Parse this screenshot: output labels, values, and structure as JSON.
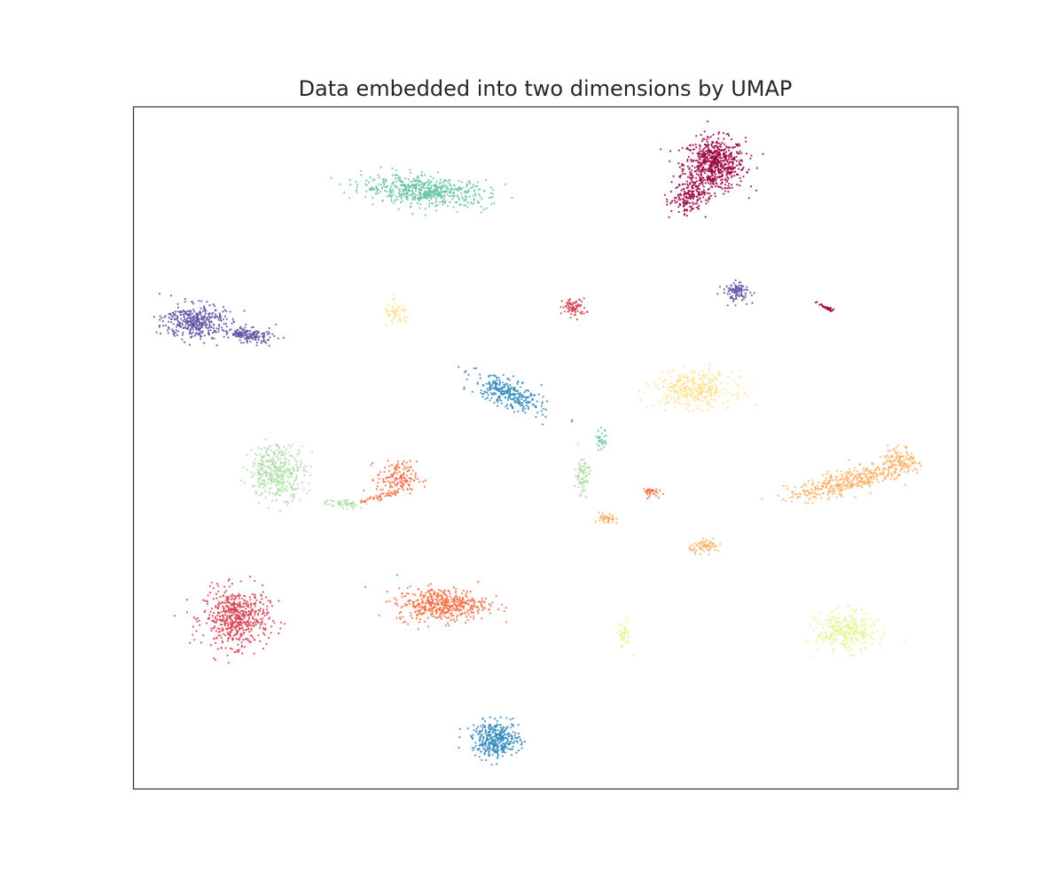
{
  "chart_data": {
    "type": "scatter",
    "title": "Data embedded into two dimensions by UMAP",
    "xlabel": "",
    "ylabel": "",
    "xlim": [
      0,
      100
    ],
    "ylim": [
      0,
      100
    ],
    "grid": false,
    "ticks": false,
    "legend": "none",
    "palette": "Spectral",
    "series": [
      {
        "label": 0,
        "color": "#9e0142",
        "clusters": [
          {
            "x": 70.5,
            "y": 91.5,
            "sx": 3.4,
            "sy": 3.5,
            "n": 650
          },
          {
            "x": 67.5,
            "y": 87.0,
            "sx": 1.8,
            "sy": 2.6,
            "n": 180,
            "rot": -35
          },
          {
            "x": 84.0,
            "y": 70.5,
            "sx": 1.2,
            "sy": 0.25,
            "n": 30,
            "rot": -30
          }
        ]
      },
      {
        "label": 1,
        "color": "#d53e4f",
        "clusters": [
          {
            "x": 53.5,
            "y": 70.5,
            "sx": 1.3,
            "sy": 1.2,
            "n": 80
          },
          {
            "x": 12.5,
            "y": 25.0,
            "sx": 3.6,
            "sy": 3.8,
            "n": 560
          }
        ]
      },
      {
        "label": 2,
        "color": "#f46d43",
        "clusters": [
          {
            "x": 32.0,
            "y": 45.5,
            "sx": 2.2,
            "sy": 2.2,
            "n": 150
          },
          {
            "x": 30.5,
            "y": 43.0,
            "sx": 3.0,
            "sy": 0.4,
            "n": 50,
            "rot": 18
          },
          {
            "x": 37.5,
            "y": 27.0,
            "sx": 5.0,
            "sy": 2.2,
            "n": 480
          },
          {
            "x": 62.5,
            "y": 43.5,
            "sx": 1.0,
            "sy": 0.6,
            "n": 35
          }
        ]
      },
      {
        "label": 3,
        "color": "#fdae61",
        "clusters": [
          {
            "x": 86.5,
            "y": 45.0,
            "sx": 6.5,
            "sy": 1.5,
            "n": 380,
            "rot": 18
          },
          {
            "x": 93.0,
            "y": 48.0,
            "sx": 1.8,
            "sy": 2.0,
            "n": 120
          },
          {
            "x": 57.5,
            "y": 39.5,
            "sx": 0.9,
            "sy": 0.8,
            "n": 45
          },
          {
            "x": 69.5,
            "y": 35.5,
            "sx": 1.8,
            "sy": 0.8,
            "n": 70
          }
        ]
      },
      {
        "label": 4,
        "color": "#fee08b",
        "clusters": [
          {
            "x": 32.0,
            "y": 69.5,
            "sx": 1.4,
            "sy": 1.6,
            "n": 55
          },
          {
            "x": 68.0,
            "y": 58.5,
            "sx": 4.3,
            "sy": 2.4,
            "n": 340
          }
        ]
      },
      {
        "label": 5,
        "color": "#e6f598",
        "clusters": [
          {
            "x": 59.5,
            "y": 22.5,
            "sx": 0.8,
            "sy": 1.8,
            "n": 50
          },
          {
            "x": 86.5,
            "y": 23.0,
            "sx": 3.2,
            "sy": 2.6,
            "n": 330
          }
        ]
      },
      {
        "label": 6,
        "color": "#abdda4",
        "clusters": [
          {
            "x": 17.5,
            "y": 46.5,
            "sx": 3.1,
            "sy": 3.6,
            "n": 380
          },
          {
            "x": 54.5,
            "y": 46.0,
            "sx": 0.8,
            "sy": 2.7,
            "n": 80
          },
          {
            "x": 25.0,
            "y": 41.8,
            "sx": 2.5,
            "sy": 0.5,
            "n": 50,
            "rot": -8
          }
        ]
      },
      {
        "label": 7,
        "color": "#66c2a5",
        "clusters": [
          {
            "x": 35.5,
            "y": 87.6,
            "sx": 7.0,
            "sy": 1.9,
            "n": 560,
            "rot": -5
          },
          {
            "x": 56.8,
            "y": 51.0,
            "sx": 0.6,
            "sy": 1.4,
            "n": 30
          }
        ]
      },
      {
        "label": 8,
        "color": "#3288bd",
        "clusters": [
          {
            "x": 45.5,
            "y": 57.8,
            "sx": 4.4,
            "sy": 1.7,
            "n": 300,
            "rot": -28
          },
          {
            "x": 44.0,
            "y": 7.2,
            "sx": 2.6,
            "sy": 2.3,
            "n": 380
          }
        ]
      },
      {
        "label": 9,
        "color": "#5e4fa2",
        "clusters": [
          {
            "x": 7.5,
            "y": 68.5,
            "sx": 3.3,
            "sy": 2.3,
            "n": 380
          },
          {
            "x": 14.0,
            "y": 66.5,
            "sx": 2.8,
            "sy": 1.0,
            "n": 160,
            "rot": -12
          },
          {
            "x": 73.2,
            "y": 72.8,
            "sx": 1.5,
            "sy": 1.3,
            "n": 100
          }
        ]
      }
    ]
  }
}
